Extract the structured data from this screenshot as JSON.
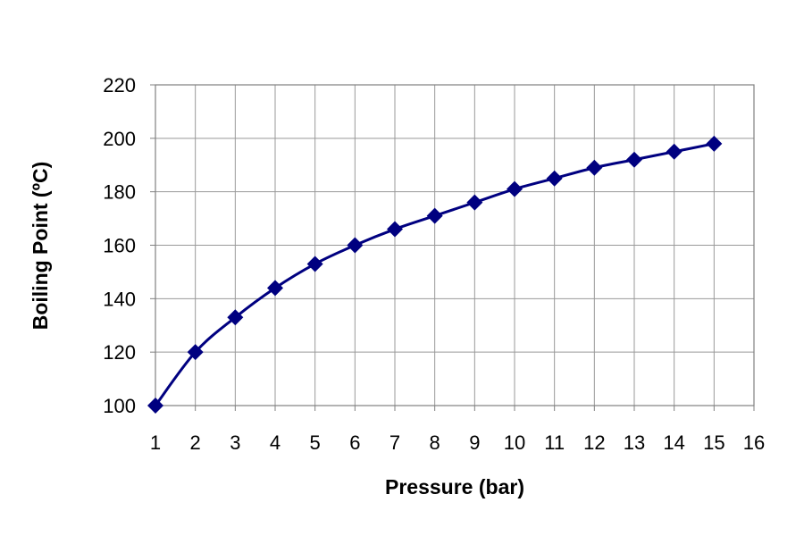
{
  "chart_data": {
    "type": "line",
    "title": "",
    "xlabel": "Pressure (bar)",
    "ylabel": "Boiling Point (ºC)",
    "xlim": [
      1,
      16
    ],
    "ylim": [
      100,
      220
    ],
    "x_ticks": [
      1,
      2,
      3,
      4,
      5,
      6,
      7,
      8,
      9,
      10,
      11,
      12,
      13,
      14,
      15,
      16
    ],
    "y_ticks": [
      100,
      120,
      140,
      160,
      180,
      200,
      220
    ],
    "grid": true,
    "legend": "none",
    "marker": "diamond",
    "series": [
      {
        "x": [
          1,
          2,
          3,
          4,
          5,
          6,
          7,
          8,
          9,
          10,
          11,
          12,
          13,
          14,
          15
        ],
        "values": [
          100,
          120,
          133,
          144,
          153,
          160,
          166,
          171,
          176,
          181,
          185,
          189,
          192,
          195,
          198
        ],
        "color": "#000080"
      }
    ],
    "colors": {
      "series": "#000080",
      "grid": "#999999",
      "frame": "#808080",
      "text": "#000000"
    }
  }
}
